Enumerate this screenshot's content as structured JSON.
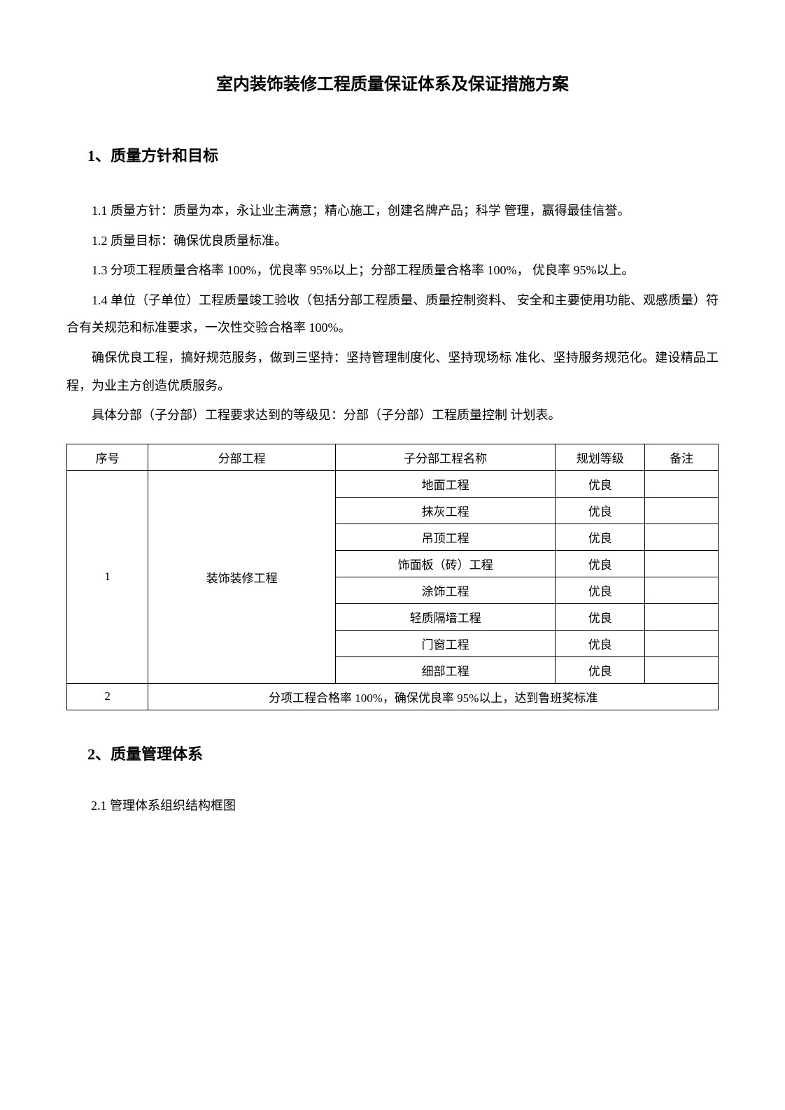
{
  "title": "室内装饰装修工程质量保证体系及保证措施方案",
  "section1": {
    "heading": "1、质量方针和目标",
    "para1": "1.1 质量方针：质量为本，永让业主满意；精心施工，创建名牌产品；科学 管理，赢得最佳信誉。",
    "para2": "1.2 质量目标：确保优良质量标准。",
    "para3": "1.3 分项工程质量合格率 100%，优良率 95%以上；分部工程质量合格率 100%， 优良率 95%以上。",
    "para4": "1.4 单位（子单位）工程质量竣工验收（包括分部工程质量、质量控制资料、 安全和主要使用功能、观感质量）符合有关规范和标准要求，一次性交验合格率 100%。",
    "para5": "确保优良工程，搞好规范服务，做到三坚持：坚持管理制度化、坚持现场标 准化、坚持服务规范化。建设精品工程，为业主方创造优质服务。",
    "para6": "具体分部（子分部）工程要求达到的等级见：分部（子分部）工程质量控制 计划表。"
  },
  "table": {
    "columns": [
      "序号",
      "分部工程",
      "子分部工程名称",
      "规划等级",
      "备注"
    ],
    "group1": {
      "seq": "1",
      "main": "装饰装修工程",
      "items": [
        {
          "sub": "地面工程",
          "grade": "优良",
          "remark": ""
        },
        {
          "sub": "抹灰工程",
          "grade": "优良",
          "remark": ""
        },
        {
          "sub": "吊顶工程",
          "grade": "优良",
          "remark": ""
        },
        {
          "sub": "饰面板（砖）工程",
          "grade": "优良",
          "remark": ""
        },
        {
          "sub": "涂饰工程",
          "grade": "优良",
          "remark": ""
        },
        {
          "sub": "轻质隔墙工程",
          "grade": "优良",
          "remark": ""
        },
        {
          "sub": "门窗工程",
          "grade": "优良",
          "remark": ""
        },
        {
          "sub": "细部工程",
          "grade": "优良",
          "remark": ""
        }
      ]
    },
    "group2": {
      "seq": "2",
      "text": "分项工程合格率 100%，确保优良率 95%以上，达到鲁班奖标准"
    }
  },
  "section2": {
    "heading": "2、质量管理体系",
    "sub1": "2.1 管理体系组织结构框图"
  }
}
